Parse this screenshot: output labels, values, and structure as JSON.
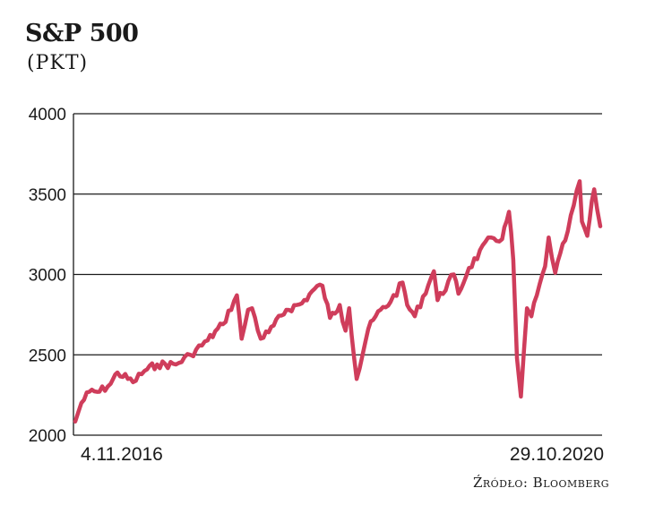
{
  "header": {
    "title": "S&P 500",
    "unit": "(PKT)"
  },
  "source": "Źródło: Bloomberg",
  "colors": {
    "line": "#cf3d5b",
    "grid": "#1a1a1a"
  },
  "chart_data": {
    "type": "line",
    "title": "S&P 500",
    "ylabel": "(PKT)",
    "ylim": [
      2000,
      4000
    ],
    "yticks": [
      2000,
      2500,
      3000,
      3500,
      4000
    ],
    "xlim": [
      "2016-11-04",
      "2020-10-29"
    ],
    "x_start_label": "4.11.2016",
    "x_end_label": "29.10.2020",
    "grid": true,
    "series": [
      {
        "x": [
          "2016-11-04",
          "2016-11-21",
          "2016-12-13",
          "2017-01-10",
          "2017-02-10",
          "2017-03-01",
          "2017-04-13",
          "2017-05-15",
          "2017-06-19",
          "2017-08-10",
          "2017-09-19",
          "2017-11-06",
          "2017-12-18",
          "2018-01-26",
          "2018-02-08",
          "2018-02-26",
          "2018-03-09",
          "2018-04-02",
          "2018-04-24",
          "2018-06-12",
          "2018-07-25",
          "2018-08-29",
          "2018-09-20",
          "2018-10-11",
          "2018-11-07",
          "2018-11-23",
          "2018-12-03",
          "2018-12-24",
          "2019-01-25",
          "2019-02-28",
          "2019-03-28",
          "2019-04-30",
          "2019-05-13",
          "2019-06-03",
          "2019-07-26",
          "2019-08-05",
          "2019-09-19",
          "2019-10-02",
          "2019-10-31",
          "2019-12-31",
          "2020-01-31",
          "2020-02-19",
          "2020-03-02",
          "2020-03-12",
          "2020-03-23",
          "2020-04-09",
          "2020-04-21",
          "2020-05-29",
          "2020-06-08",
          "2020-06-26",
          "2020-07-31",
          "2020-09-02",
          "2020-09-08",
          "2020-09-23",
          "2020-10-12",
          "2020-10-29"
        ],
        "values": [
          2085,
          2200,
          2270,
          2270,
          2320,
          2390,
          2330,
          2400,
          2440,
          2440,
          2500,
          2590,
          2690,
          2870,
          2600,
          2780,
          2790,
          2600,
          2640,
          2780,
          2820,
          2910,
          2930,
          2730,
          2810,
          2650,
          2790,
          2350,
          2660,
          2780,
          2830,
          2950,
          2810,
          2740,
          3020,
          2840,
          3000,
          2880,
          3040,
          3230,
          3220,
          3390,
          3090,
          2480,
          2240,
          2790,
          2740,
          3050,
          3230,
          3010,
          3270,
          3580,
          3330,
          3240,
          3530,
          3300
        ]
      }
    ]
  }
}
